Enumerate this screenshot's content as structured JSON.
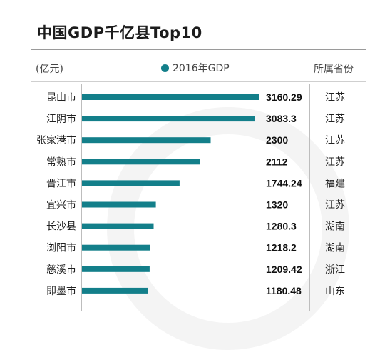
{
  "header": {
    "title": "中国GDP千亿县Top10",
    "unit": "(亿元)",
    "legend_label": "2016年GDP",
    "province_header": "所属省份"
  },
  "colors": {
    "bar": "#137f8a",
    "text": "#222222"
  },
  "chart_data": {
    "type": "bar",
    "orientation": "horizontal",
    "title": "中国GDP千亿县Top10",
    "unit_label": "(亿元)",
    "series": [
      {
        "name": "2016年GDP",
        "values": [
          3160.29,
          3083.3,
          2300,
          2112,
          1744.24,
          1320,
          1280.3,
          1218.2,
          1209.42,
          1180.48
        ]
      }
    ],
    "categories": [
      "昆山市",
      "江阴市",
      "张家港市",
      "常熟市",
      "晋江市",
      "宜兴市",
      "长沙县",
      "浏阳市",
      "慈溪市",
      "即墨市"
    ],
    "value_labels": [
      "3160.29",
      "3083.3",
      "2300",
      "2112",
      "1744.24",
      "1320",
      "1280.3",
      "1218.2",
      "1209.42",
      "1180.48"
    ],
    "provinces": [
      "江苏",
      "江苏",
      "江苏",
      "江苏",
      "福建",
      "江苏",
      "湖南",
      "湖南",
      "浙江",
      "山东"
    ],
    "xlim": [
      0,
      3160.29
    ],
    "grid": false,
    "legend_position": "top-center"
  }
}
